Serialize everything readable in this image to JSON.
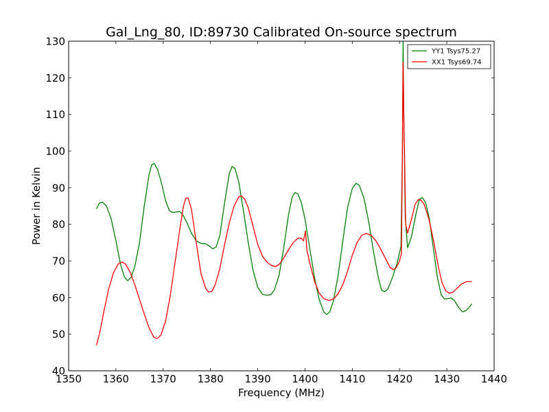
{
  "chart_data": {
    "type": "line",
    "title": "Gal_Lng_80, ID:89730 Calibrated On-source spectrum",
    "xlabel": "Frequency (MHz)",
    "ylabel": "Power in Kelvin",
    "xlim": [
      1350,
      1440
    ],
    "ylim": [
      40,
      130
    ],
    "xticks": [
      1350,
      1360,
      1370,
      1380,
      1390,
      1400,
      1410,
      1420,
      1430,
      1440
    ],
    "yticks": [
      40,
      50,
      60,
      70,
      80,
      90,
      100,
      110,
      120,
      130
    ],
    "xtick_labels": [
      "1350",
      "1360",
      "1370",
      "1380",
      "1390",
      "1400",
      "1410",
      "1420",
      "1430",
      "1440"
    ],
    "ytick_labels": [
      "40",
      "50",
      "60",
      "70",
      "80",
      "90",
      "100",
      "110",
      "120",
      "130"
    ],
    "grid": false,
    "legend_position": "top-right",
    "series": [
      {
        "name": "YY1 Tsys75.27",
        "color": "#008000",
        "points": [
          [
            1355.9,
            84.2
          ],
          [
            1356.5,
            85.8
          ],
          [
            1357.2,
            86.0
          ],
          [
            1358.0,
            85.0
          ],
          [
            1359.0,
            81.5
          ],
          [
            1360.0,
            75.5
          ],
          [
            1361.0,
            69.0
          ],
          [
            1361.8,
            65.6
          ],
          [
            1362.5,
            64.6
          ],
          [
            1363.2,
            65.5
          ],
          [
            1364.0,
            68.5
          ],
          [
            1365.0,
            75.0
          ],
          [
            1366.0,
            85.0
          ],
          [
            1367.0,
            93.5
          ],
          [
            1367.6,
            96.3
          ],
          [
            1368.1,
            96.6
          ],
          [
            1368.8,
            95.0
          ],
          [
            1369.6,
            91.5
          ],
          [
            1370.5,
            86.5
          ],
          [
            1371.3,
            83.8
          ],
          [
            1372.0,
            83.2
          ],
          [
            1373.0,
            83.4
          ],
          [
            1373.5,
            83.5
          ],
          [
            1374.2,
            82.5
          ],
          [
            1375.0,
            80.5
          ],
          [
            1376.0,
            77.5
          ],
          [
            1377.0,
            75.5
          ],
          [
            1378.0,
            74.8
          ],
          [
            1379.0,
            74.7
          ],
          [
            1379.8,
            74.0
          ],
          [
            1380.5,
            73.3
          ],
          [
            1381.2,
            73.8
          ],
          [
            1382.0,
            77.0
          ],
          [
            1383.0,
            86.0
          ],
          [
            1384.0,
            94.0
          ],
          [
            1384.6,
            95.8
          ],
          [
            1385.2,
            95.2
          ],
          [
            1386.0,
            91.5
          ],
          [
            1387.0,
            83.5
          ],
          [
            1388.0,
            75.0
          ],
          [
            1389.0,
            67.5
          ],
          [
            1390.0,
            62.8
          ],
          [
            1391.0,
            60.9
          ],
          [
            1392.0,
            60.6
          ],
          [
            1392.8,
            60.8
          ],
          [
            1393.5,
            62.0
          ],
          [
            1394.5,
            66.0
          ],
          [
            1395.5,
            73.5
          ],
          [
            1396.5,
            82.5
          ],
          [
            1397.3,
            87.5
          ],
          [
            1397.9,
            88.7
          ],
          [
            1398.5,
            88.3
          ],
          [
            1399.2,
            86.0
          ],
          [
            1400.0,
            81.5
          ],
          [
            1401.0,
            73.5
          ],
          [
            1402.0,
            65.5
          ],
          [
            1403.0,
            59.5
          ],
          [
            1404.0,
            56.0
          ],
          [
            1404.6,
            55.4
          ],
          [
            1405.2,
            56.0
          ],
          [
            1406.0,
            59.0
          ],
          [
            1407.0,
            66.0
          ],
          [
            1408.0,
            75.5
          ],
          [
            1409.0,
            84.5
          ],
          [
            1410.0,
            89.8
          ],
          [
            1410.8,
            91.2
          ],
          [
            1411.5,
            90.6
          ],
          [
            1412.5,
            87.0
          ],
          [
            1413.5,
            80.5
          ],
          [
            1414.5,
            72.5
          ],
          [
            1415.5,
            65.5
          ],
          [
            1416.2,
            62.0
          ],
          [
            1416.8,
            61.6
          ],
          [
            1417.5,
            62.3
          ],
          [
            1418.5,
            65.5
          ],
          [
            1419.5,
            69.5
          ],
          [
            1420.3,
            74.0
          ],
          [
            1420.6,
            100.0
          ],
          [
            1420.75,
            130.0
          ],
          [
            1420.9,
            110.0
          ],
          [
            1421.2,
            82.0
          ],
          [
            1421.7,
            73.6
          ],
          [
            1422.5,
            76.5
          ],
          [
            1423.5,
            83.0
          ],
          [
            1424.2,
            86.8
          ],
          [
            1424.8,
            87.3
          ],
          [
            1425.5,
            86.0
          ],
          [
            1426.3,
            81.5
          ],
          [
            1427.2,
            73.0
          ],
          [
            1428.0,
            65.5
          ],
          [
            1428.8,
            60.8
          ],
          [
            1429.5,
            59.6
          ],
          [
            1430.2,
            59.7
          ],
          [
            1430.9,
            59.9
          ],
          [
            1431.6,
            59.2
          ],
          [
            1432.5,
            57.3
          ],
          [
            1433.3,
            56.1
          ],
          [
            1434.0,
            56.4
          ],
          [
            1434.7,
            57.3
          ],
          [
            1435.3,
            58.3
          ]
        ]
      },
      {
        "name": "XX1 Tsys69.74",
        "color": "#ff0000",
        "points": [
          [
            1355.9,
            47.0
          ],
          [
            1356.6,
            50.5
          ],
          [
            1357.5,
            56.5
          ],
          [
            1358.5,
            62.5
          ],
          [
            1359.5,
            66.8
          ],
          [
            1360.5,
            69.2
          ],
          [
            1361.3,
            69.7
          ],
          [
            1362.0,
            69.2
          ],
          [
            1363.0,
            67.0
          ],
          [
            1364.0,
            63.5
          ],
          [
            1365.0,
            59.5
          ],
          [
            1366.0,
            55.5
          ],
          [
            1367.0,
            51.8
          ],
          [
            1368.0,
            49.2
          ],
          [
            1368.7,
            48.8
          ],
          [
            1369.5,
            49.7
          ],
          [
            1370.5,
            53.5
          ],
          [
            1371.5,
            60.5
          ],
          [
            1372.5,
            69.5
          ],
          [
            1373.5,
            78.5
          ],
          [
            1374.3,
            85.0
          ],
          [
            1374.8,
            87.2
          ],
          [
            1375.3,
            87.2
          ],
          [
            1376.0,
            84.0
          ],
          [
            1377.0,
            75.0
          ],
          [
            1378.0,
            66.5
          ],
          [
            1379.0,
            62.5
          ],
          [
            1379.6,
            61.5
          ],
          [
            1380.3,
            61.7
          ],
          [
            1381.0,
            63.5
          ],
          [
            1382.0,
            68.0
          ],
          [
            1383.0,
            74.5
          ],
          [
            1384.0,
            80.5
          ],
          [
            1385.0,
            85.0
          ],
          [
            1386.0,
            87.5
          ],
          [
            1386.5,
            87.8
          ],
          [
            1387.2,
            87.0
          ],
          [
            1388.0,
            84.5
          ],
          [
            1389.0,
            79.5
          ],
          [
            1390.0,
            74.5
          ],
          [
            1391.0,
            71.3
          ],
          [
            1392.0,
            69.6
          ],
          [
            1393.0,
            68.7
          ],
          [
            1393.8,
            68.5
          ],
          [
            1394.5,
            69.0
          ],
          [
            1395.5,
            70.8
          ],
          [
            1396.5,
            73.0
          ],
          [
            1397.5,
            75.0
          ],
          [
            1398.5,
            76.2
          ],
          [
            1399.2,
            76.2
          ],
          [
            1399.7,
            75.5
          ],
          [
            1400.1,
            78.2
          ],
          [
            1400.4,
            73.0
          ],
          [
            1401.0,
            69.5
          ],
          [
            1402.0,
            64.5
          ],
          [
            1403.0,
            61.2
          ],
          [
            1404.0,
            59.7
          ],
          [
            1405.0,
            59.2
          ],
          [
            1406.0,
            59.6
          ],
          [
            1407.0,
            61.0
          ],
          [
            1408.0,
            63.5
          ],
          [
            1409.0,
            67.2
          ],
          [
            1410.0,
            71.5
          ],
          [
            1411.0,
            75.0
          ],
          [
            1412.0,
            77.0
          ],
          [
            1413.0,
            77.5
          ],
          [
            1414.0,
            77.0
          ],
          [
            1415.0,
            75.5
          ],
          [
            1416.0,
            73.3
          ],
          [
            1417.0,
            70.7
          ],
          [
            1418.0,
            68.2
          ],
          [
            1418.7,
            67.6
          ],
          [
            1419.3,
            68.2
          ],
          [
            1420.0,
            70.0
          ],
          [
            1420.4,
            72.0
          ],
          [
            1420.6,
            100.0
          ],
          [
            1420.75,
            124.2
          ],
          [
            1420.9,
            110.0
          ],
          [
            1421.3,
            80.0
          ],
          [
            1421.7,
            77.6
          ],
          [
            1422.4,
            80.8
          ],
          [
            1423.3,
            85.5
          ],
          [
            1424.0,
            86.8
          ],
          [
            1424.5,
            86.6
          ],
          [
            1425.2,
            85.5
          ],
          [
            1426.2,
            81.5
          ],
          [
            1427.2,
            75.5
          ],
          [
            1428.2,
            68.5
          ],
          [
            1429.0,
            64.0
          ],
          [
            1429.8,
            61.8
          ],
          [
            1430.5,
            61.2
          ],
          [
            1431.2,
            61.4
          ],
          [
            1432.0,
            62.3
          ],
          [
            1433.0,
            63.6
          ],
          [
            1434.0,
            64.3
          ],
          [
            1435.3,
            64.4
          ]
        ]
      }
    ]
  }
}
